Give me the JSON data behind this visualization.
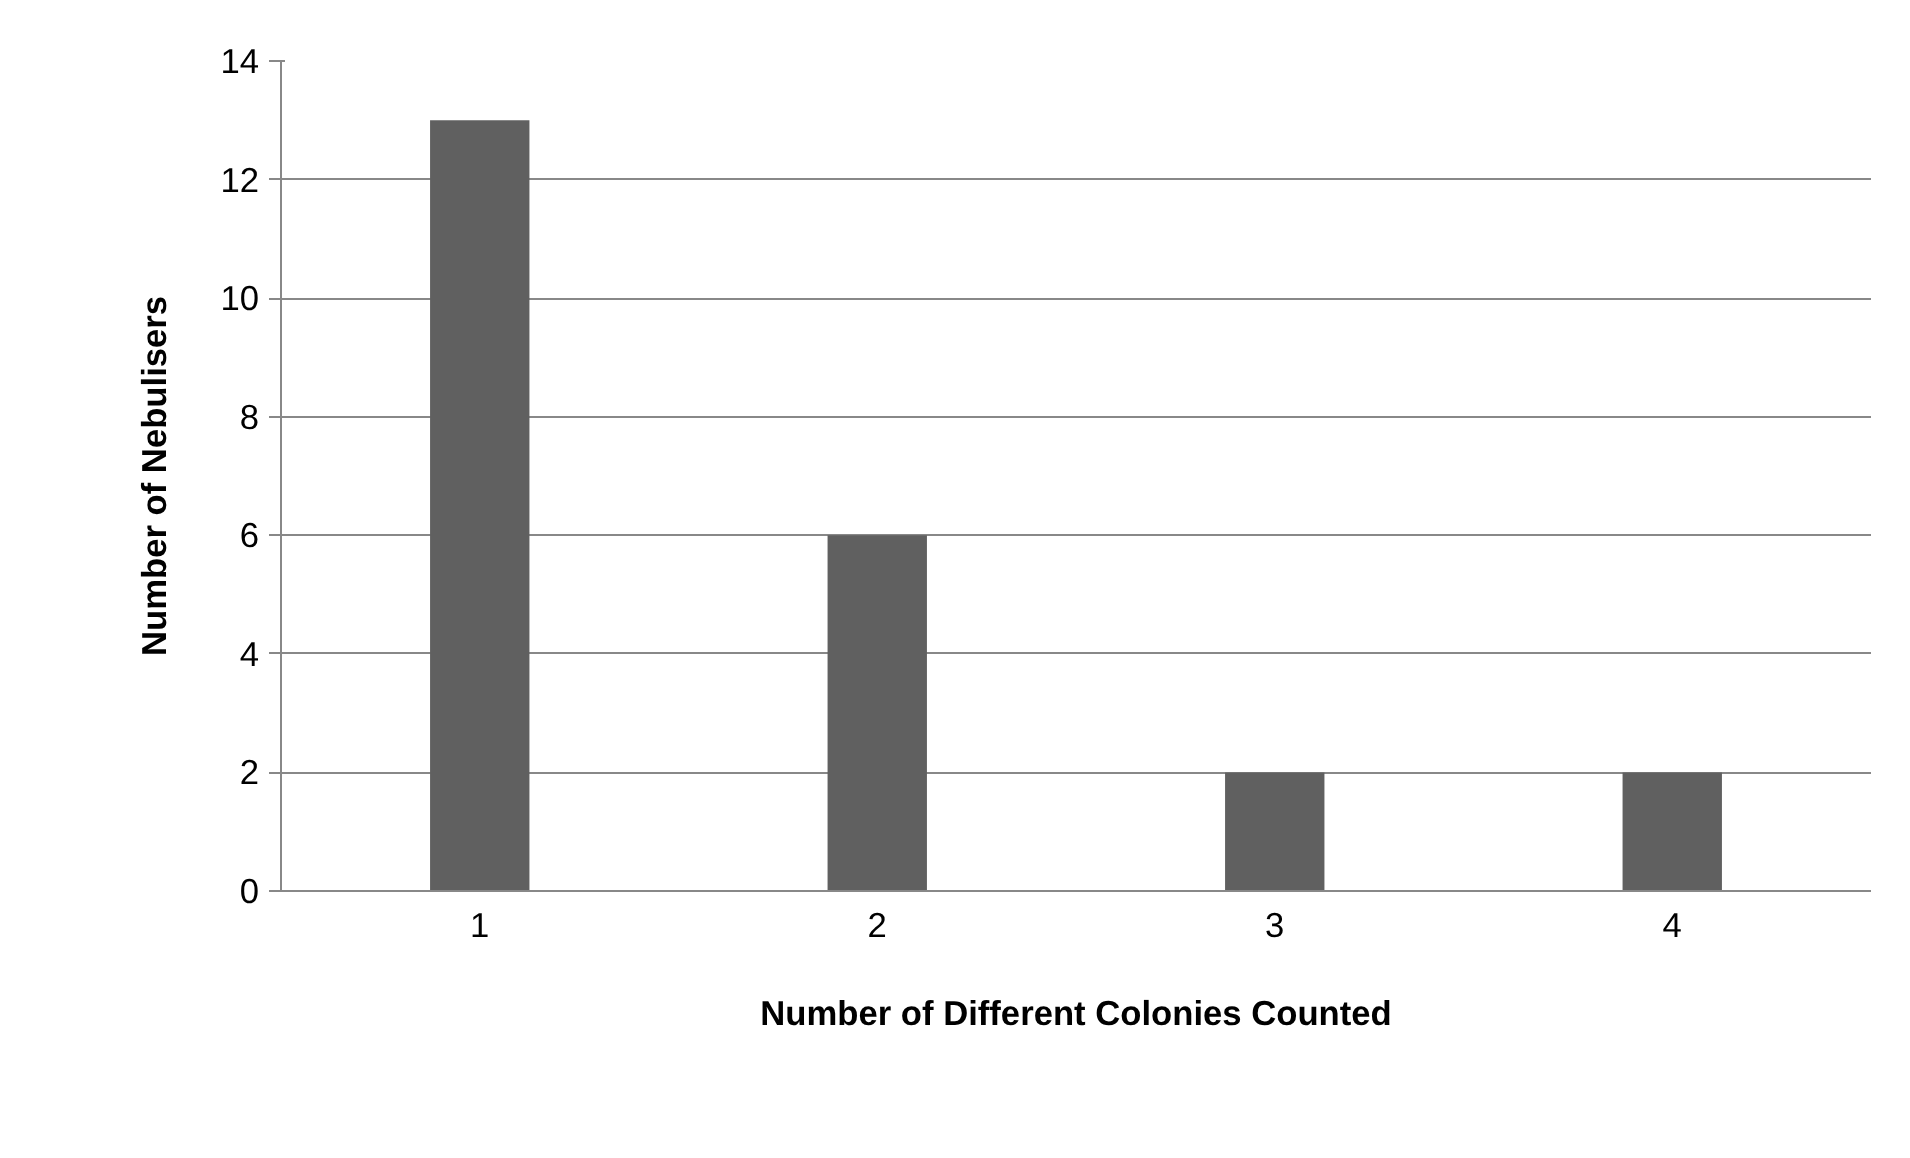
{
  "chart_data": {
    "type": "bar",
    "xlabel": "Number of Different Colonies Counted",
    "ylabel": "Number of Nebulisers",
    "categories": [
      "1",
      "2",
      "3",
      "4"
    ],
    "values": [
      13,
      6,
      2,
      2
    ],
    "color": "#606060",
    "ylim": [
      0,
      14
    ],
    "yticks": [
      0,
      2,
      4,
      6,
      8,
      10,
      12,
      14
    ],
    "grid": "y"
  }
}
